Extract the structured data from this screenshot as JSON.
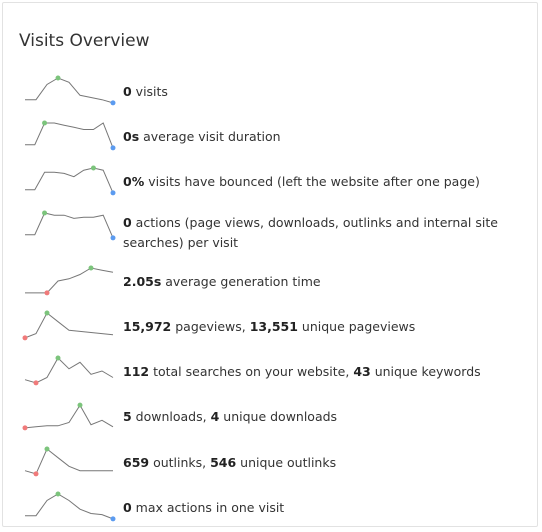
{
  "widget": {
    "title": "Visits Overview"
  },
  "metrics": [
    {
      "value": "0",
      "label": " visits",
      "spark": [
        2,
        2,
        9,
        12,
        10,
        4,
        3,
        2,
        0.5
      ],
      "max_index": 3,
      "min_index": 8
    },
    {
      "value": "0s",
      "label": " average visit duration",
      "spark": [
        2,
        2,
        12,
        12,
        11,
        10,
        9,
        9,
        12,
        0.5
      ],
      "max_index": 2,
      "min_index": 9
    },
    {
      "value": "0%",
      "label": " visits have bounced (left the website after one page)",
      "spark": [
        2,
        2,
        10,
        10,
        9.5,
        8,
        11,
        12,
        11,
        0.5
      ],
      "max_index": 7,
      "min_index": 9
    },
    {
      "value": "0",
      "label": " actions (page views, downloads, outlinks and internal site searches) per visit",
      "spark": [
        2,
        2,
        12,
        11,
        11,
        9.5,
        10,
        10,
        11,
        0.5
      ],
      "max_index": 2,
      "min_index": 9
    },
    {
      "value": "2.05s",
      "label": " average generation time",
      "spark": [
        0.5,
        0.5,
        0.5,
        6,
        7,
        9,
        12,
        11,
        10
      ],
      "max_index": 6,
      "min_index": 2
    },
    {
      "value": "15,972",
      "label": " pageviews, ",
      "value2": "13,551",
      "label2": " unique pageviews",
      "spark": [
        0.5,
        2.5,
        12,
        8,
        4,
        3.5,
        3,
        2.5,
        2
      ],
      "max_index": 2,
      "min_index": 0
    },
    {
      "value": "112",
      "label": " total searches on your website, ",
      "value2": "43",
      "label2": " unique keywords",
      "spark": [
        2,
        0.5,
        3,
        12,
        7,
        10,
        4.5,
        6,
        3
      ],
      "max_index": 3,
      "min_index": 1
    },
    {
      "value": "5",
      "label": " downloads, ",
      "value2": "4",
      "label2": " unique downloads",
      "spark": [
        0.5,
        1,
        1.5,
        1.5,
        3,
        11,
        2,
        4,
        1
      ],
      "max_index": 5,
      "min_index": 0
    },
    {
      "value": "659",
      "label": " outlinks, ",
      "value2": "546",
      "label2": " unique outlinks",
      "spark": [
        2,
        0.5,
        12,
        8,
        4,
        2,
        2,
        2,
        2
      ],
      "max_index": 2,
      "min_index": 1
    },
    {
      "value": "0",
      "label": " max actions in one visit",
      "spark": [
        2,
        2,
        9,
        12,
        9,
        5,
        3,
        2.5,
        0.5
      ],
      "max_index": 3,
      "min_index": 8
    }
  ],
  "colors": {
    "line": "#777777",
    "max_point": "#7cc47c",
    "min_point_zero": "#5b9bf0",
    "min_point_low": "#f07a7a"
  }
}
